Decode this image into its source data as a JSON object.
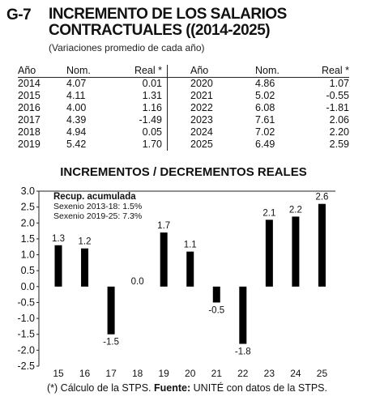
{
  "header": {
    "code": "G-7",
    "title_line1": "INCREMENTO DE LOS SALARIOS",
    "title_line2": "CONTRACTUALES ((2014-2025)",
    "subtitle": "(Variaciones promedio de cada año)"
  },
  "table": {
    "columns": [
      "Año",
      "Nom.",
      "Real *",
      "Año",
      "Nom.",
      "Real *"
    ],
    "rows": [
      [
        "2014",
        "4.07",
        "0.01",
        "2020",
        "4.86",
        "1.07"
      ],
      [
        "2015",
        "4.11",
        "1.31",
        "2021",
        "5.02",
        "-0.55"
      ],
      [
        "2016",
        "4.00",
        "1.16",
        "2022",
        "6.08",
        "-1.81"
      ],
      [
        "2017",
        "4.39",
        "-1.49",
        "2023",
        "7.61",
        "2.06"
      ],
      [
        "2018",
        "4.94",
        "0.05",
        "2024",
        "7.02",
        "2.20"
      ],
      [
        "2019",
        "5.42",
        "1.70",
        "2025",
        "6.49",
        "2.59"
      ]
    ]
  },
  "chart_data": {
    "type": "bar",
    "title": "INCREMENTOS / DECREMENTOS REALES",
    "categories": [
      "15",
      "16",
      "17",
      "18",
      "19",
      "20",
      "21",
      "22",
      "23",
      "24",
      "25"
    ],
    "values": [
      1.3,
      1.2,
      -1.5,
      0.0,
      1.7,
      1.1,
      -0.5,
      -1.8,
      2.1,
      2.2,
      2.6
    ],
    "labels": [
      "1.3",
      "1.2",
      "-1.5",
      "0.0",
      "1.7",
      "1.1",
      "-0.5",
      "-1.8",
      "2.1",
      "2.2",
      "2.6"
    ],
    "ylim": [
      -2.5,
      3.0
    ],
    "yticks": [
      "3.0",
      "2.5",
      "2.0",
      "1.5",
      "1.0",
      "0.5",
      "0.0",
      "-0.5",
      "-1.0",
      "-1.5",
      "-2.0",
      "-2.5"
    ],
    "ytick_values": [
      3.0,
      2.5,
      2.0,
      1.5,
      1.0,
      0.5,
      0.0,
      -0.5,
      -1.0,
      -1.5,
      -2.0,
      -2.5
    ],
    "grid": false,
    "bar_color": "#000000",
    "annotation": {
      "heading": "Recup. acumulada",
      "lines": [
        "Sexenio 2013-18:  1.5%",
        "Sexenio 2019-25:  7.3%"
      ]
    }
  },
  "footer": {
    "note": "(*) Cálculo de la STPS.",
    "source_label": "Fuente:",
    "source": "UNITÉ con datos de la STPS."
  }
}
